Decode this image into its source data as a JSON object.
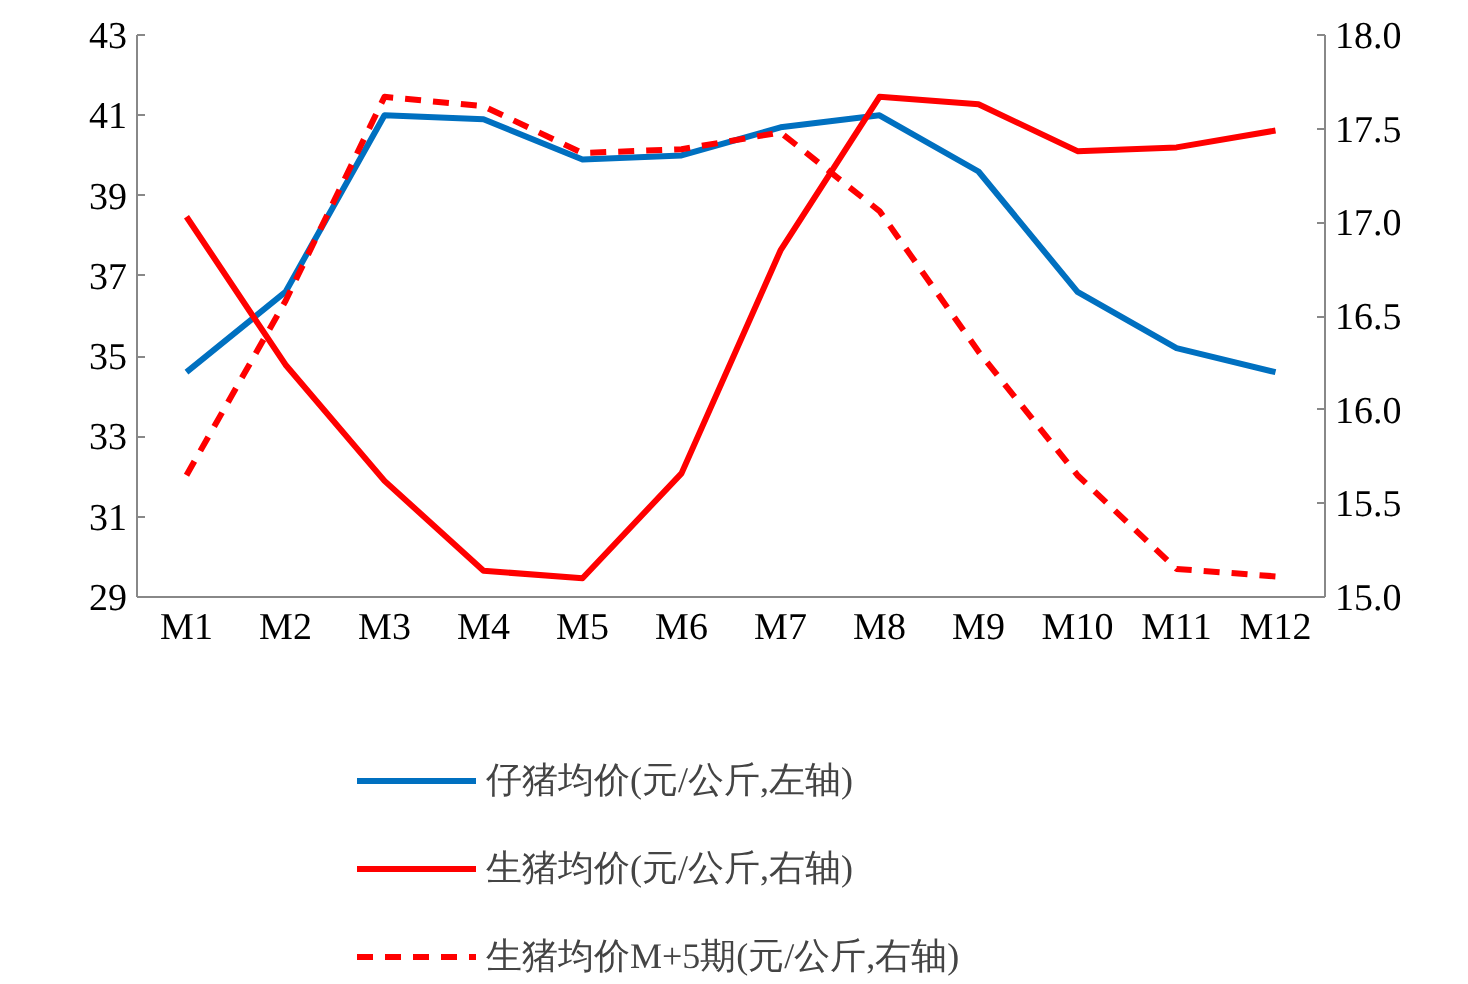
{
  "chart_data": {
    "type": "line",
    "categories": [
      "M1",
      "M2",
      "M3",
      "M4",
      "M5",
      "M6",
      "M7",
      "M8",
      "M9",
      "M10",
      "M11",
      "M12"
    ],
    "ylim": [
      29,
      43
    ],
    "yticks": [
      29,
      31,
      33,
      35,
      37,
      39,
      41,
      43
    ],
    "y2lim": [
      15.0,
      18.0
    ],
    "y2ticks": [
      {
        "value": 15.0,
        "label": "15.0"
      },
      {
        "value": 15.5,
        "label": "15.5"
      },
      {
        "value": 16.0,
        "label": "16.0"
      },
      {
        "value": 16.5,
        "label": "16.5"
      },
      {
        "value": 17.0,
        "label": "17.0"
      },
      {
        "value": 17.5,
        "label": "17.5"
      },
      {
        "value": 18.0,
        "label": "18.0"
      }
    ],
    "grid": false,
    "legend": "bottom",
    "marker": "none",
    "series": [
      {
        "name": "仔猪均价(元/公斤,左轴)",
        "color": "#0070c0",
        "values": [
          34.6,
          36.6,
          41.0,
          40.9,
          39.9,
          40.0,
          40.7,
          41.0,
          39.6,
          36.6,
          35.2,
          34.6
        ]
      },
      {
        "name": "生猪均价(元/公斤,右轴)",
        "color": "#ff0000",
        "axis": "y2",
        "values": [
          17.03,
          16.24,
          15.62,
          15.14,
          15.1,
          15.66,
          16.85,
          17.67,
          17.63,
          17.38,
          17.4,
          17.49
        ]
      },
      {
        "name": "生猪均价M+5期(元/公斤,右轴)",
        "color": "#ff0000",
        "axis": "y2",
        "line_style": "dashed",
        "values": [
          15.65,
          16.58,
          17.67,
          17.62,
          17.37,
          17.39,
          17.48,
          17.06,
          16.31,
          15.65,
          15.15,
          15.11
        ]
      }
    ]
  }
}
